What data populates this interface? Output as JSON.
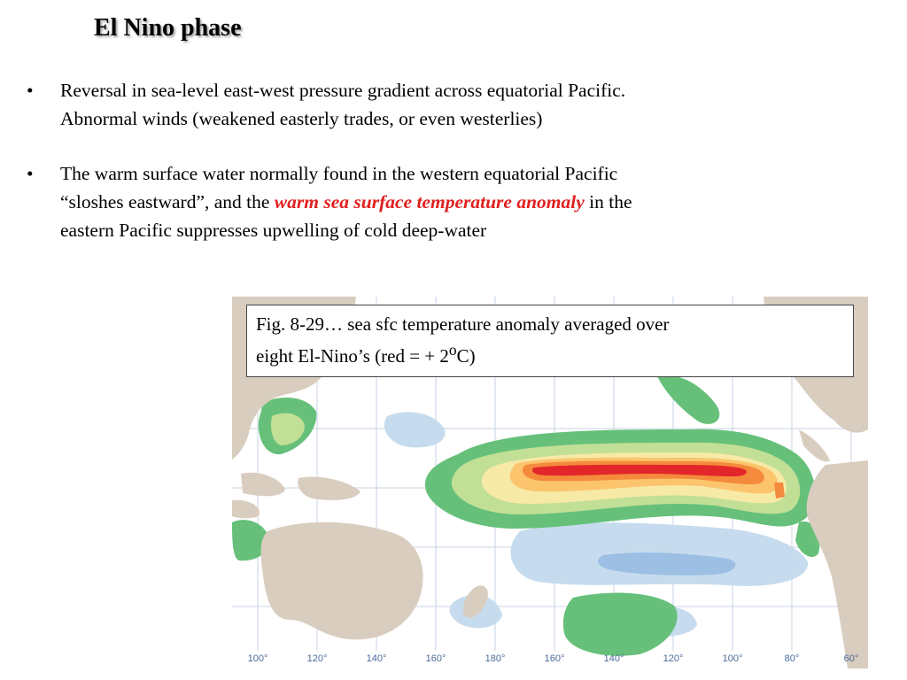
{
  "slide": {
    "title": "El Nino phase",
    "bullets": [
      {
        "symbol": "•",
        "line1": "Reversal in sea-level east-west pressure gradient across equatorial Pacific.",
        "line2": "Abnormal winds (weakened easterly trades, or even westerlies)"
      },
      {
        "symbol": "•",
        "line1": "The warm surface water normally found in the western equatorial Pacific",
        "line2_pre": "“sloshes eastward”, and the ",
        "line2_highlight": "warm sea surface temperature anomaly",
        "line2_post": " in the",
        "line3": "eastern Pacific suppresses upwelling of cold deep-water"
      }
    ]
  },
  "figure": {
    "caption_line1": "Fig. 8-29… sea sfc temperature anomaly averaged over",
    "caption_line2_pre": "eight El-Nino’s   (red = + 2",
    "caption_sup": "o",
    "caption_line2_post": "C)",
    "longitude_labels": [
      "100°",
      "120°",
      "140°",
      "160°",
      "180°",
      "160°",
      "140°",
      "120°",
      "100°",
      "80°",
      "60°"
    ],
    "colors": {
      "ocean": "#ffffff",
      "land": "#d9cdbf",
      "grid": "#c7d3e6",
      "anomaly_warm_1": "#66c07a",
      "anomaly_warm_2": "#c2df96",
      "anomaly_warm_3": "#f7e9a6",
      "anomaly_warm_4": "#fcc46d",
      "anomaly_warm_5": "#f48a3c",
      "anomaly_warm_6": "#e3262a",
      "anomaly_cool_1": "#c6dcee",
      "anomaly_cool_2": "#9dbfe4"
    }
  }
}
